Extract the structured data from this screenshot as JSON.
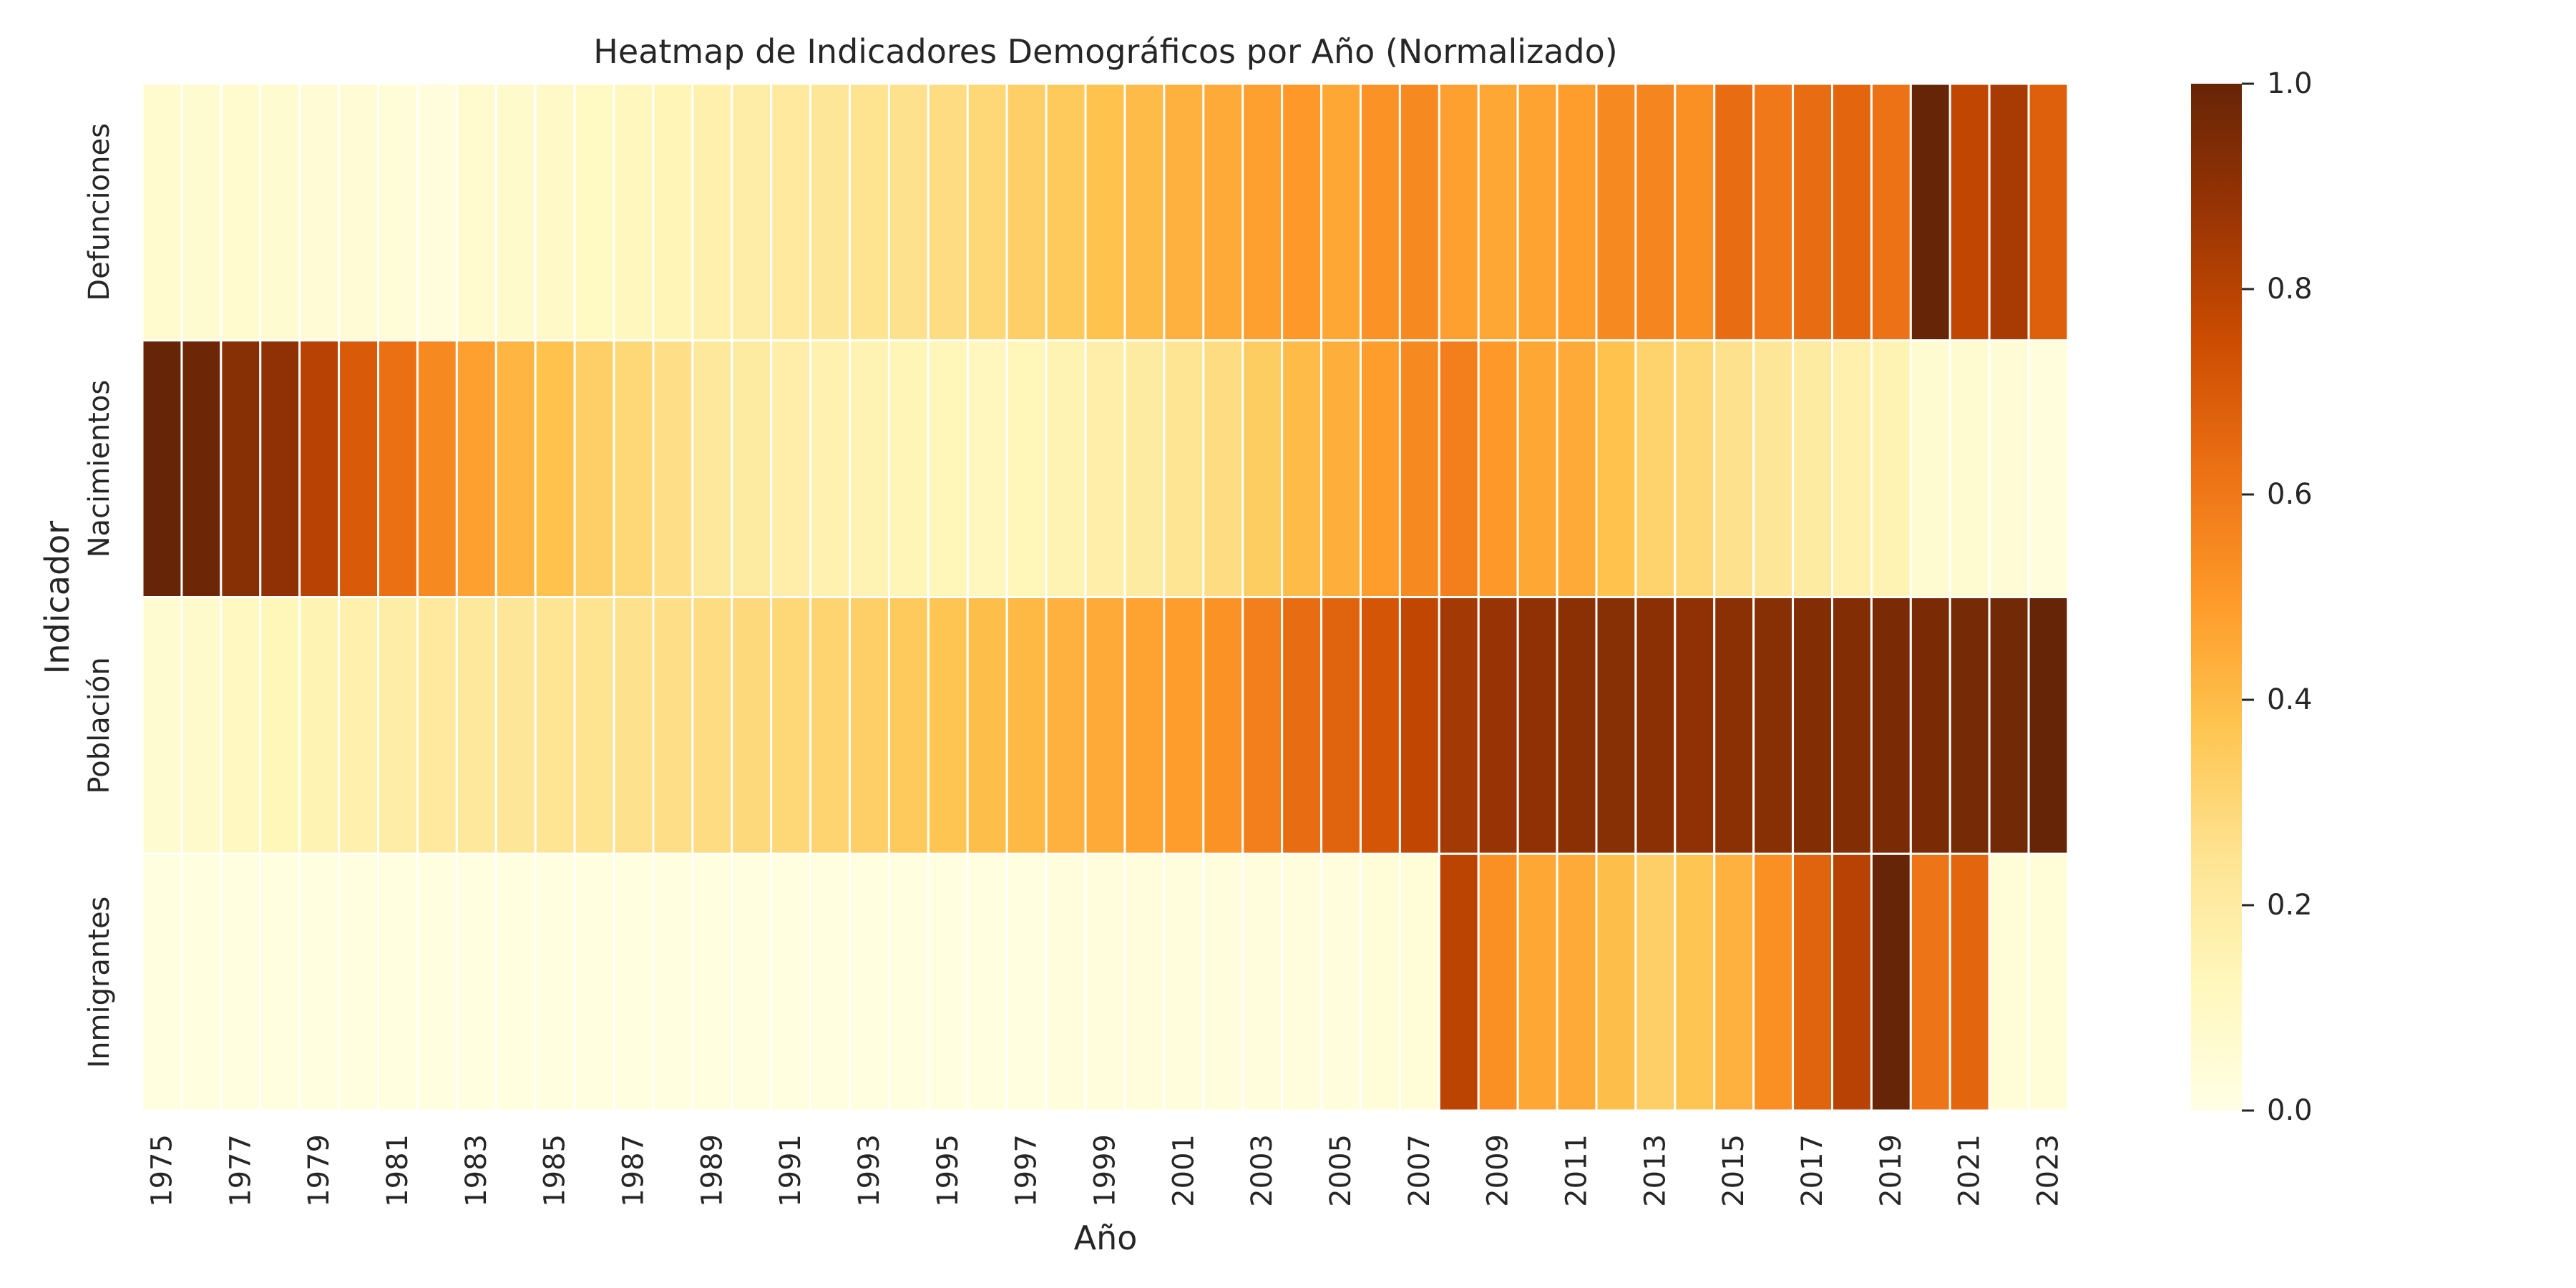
{
  "chart_data": {
    "type": "heatmap",
    "title": "Heatmap de Indicadores Demográficos por Año (Normalizado)",
    "xlabel": "Año",
    "ylabel": "Indicador",
    "x": [
      1975,
      1976,
      1977,
      1978,
      1979,
      1980,
      1981,
      1982,
      1983,
      1984,
      1985,
      1986,
      1987,
      1988,
      1989,
      1990,
      1991,
      1992,
      1993,
      1994,
      1995,
      1996,
      1997,
      1998,
      1999,
      2000,
      2001,
      2002,
      2003,
      2004,
      2005,
      2006,
      2007,
      2008,
      2009,
      2010,
      2011,
      2012,
      2013,
      2014,
      2015,
      2016,
      2017,
      2018,
      2019,
      2020,
      2021,
      2022,
      2023
    ],
    "x_tick_labels": [
      "1975",
      "1977",
      "1979",
      "1981",
      "1983",
      "1985",
      "1987",
      "1989",
      "1991",
      "1993",
      "1995",
      "1997",
      "1999",
      "2001",
      "2003",
      "2005",
      "2007",
      "2009",
      "2011",
      "2013",
      "2015",
      "2017",
      "2019",
      "2021",
      "2023"
    ],
    "rows": [
      "Defunciones",
      "Nacimientos",
      "Población",
      "Inmigrantes"
    ],
    "values": [
      [
        0.07,
        0.06,
        0.07,
        0.06,
        0.05,
        0.05,
        0.04,
        0.03,
        0.07,
        0.08,
        0.09,
        0.1,
        0.12,
        0.14,
        0.17,
        0.19,
        0.21,
        0.23,
        0.25,
        0.26,
        0.28,
        0.3,
        0.33,
        0.35,
        0.38,
        0.4,
        0.43,
        0.45,
        0.48,
        0.5,
        0.46,
        0.52,
        0.55,
        0.48,
        0.46,
        0.47,
        0.49,
        0.55,
        0.56,
        0.53,
        0.64,
        0.6,
        0.64,
        0.66,
        0.62,
        1.0,
        0.78,
        0.84,
        0.68
      ],
      [
        1.0,
        0.98,
        0.92,
        0.9,
        0.8,
        0.7,
        0.63,
        0.55,
        0.48,
        0.42,
        0.38,
        0.33,
        0.3,
        0.27,
        0.22,
        0.2,
        0.18,
        0.16,
        0.15,
        0.14,
        0.13,
        0.12,
        0.13,
        0.15,
        0.18,
        0.2,
        0.24,
        0.28,
        0.34,
        0.4,
        0.44,
        0.49,
        0.55,
        0.58,
        0.5,
        0.46,
        0.45,
        0.38,
        0.32,
        0.3,
        0.26,
        0.23,
        0.2,
        0.17,
        0.15,
        0.06,
        0.06,
        0.05,
        0.03
      ],
      [
        0.06,
        0.08,
        0.11,
        0.13,
        0.15,
        0.17,
        0.19,
        0.21,
        0.22,
        0.23,
        0.24,
        0.25,
        0.26,
        0.27,
        0.28,
        0.29,
        0.3,
        0.31,
        0.33,
        0.35,
        0.37,
        0.39,
        0.41,
        0.43,
        0.45,
        0.47,
        0.49,
        0.52,
        0.58,
        0.64,
        0.67,
        0.72,
        0.78,
        0.85,
        0.88,
        0.9,
        0.91,
        0.92,
        0.91,
        0.9,
        0.91,
        0.92,
        0.93,
        0.93,
        0.95,
        0.95,
        0.96,
        0.97,
        1.0
      ],
      [
        0.02,
        0.02,
        0.02,
        0.02,
        0.02,
        0.02,
        0.02,
        0.02,
        0.02,
        0.02,
        0.02,
        0.02,
        0.02,
        0.02,
        0.02,
        0.02,
        0.02,
        0.02,
        0.02,
        0.02,
        0.02,
        0.02,
        0.02,
        0.03,
        0.03,
        0.03,
        0.03,
        0.03,
        0.03,
        0.03,
        0.03,
        0.04,
        0.04,
        0.79,
        0.53,
        0.46,
        0.45,
        0.39,
        0.33,
        0.37,
        0.43,
        0.53,
        0.67,
        0.8,
        1.0,
        0.61,
        0.66,
        0.04,
        0.04
      ]
    ],
    "vmin": 0.0,
    "vmax": 1.0,
    "colormap": "YlOrBr",
    "colorbar_ticks": [
      "0.0",
      "0.2",
      "0.4",
      "0.6",
      "0.8",
      "1.0"
    ],
    "colorbar_stops": [
      "#ffffe5",
      "#fff7bc",
      "#fee391",
      "#fec44f",
      "#fe9929",
      "#ec7014",
      "#cc4c02",
      "#993404",
      "#662506"
    ]
  }
}
